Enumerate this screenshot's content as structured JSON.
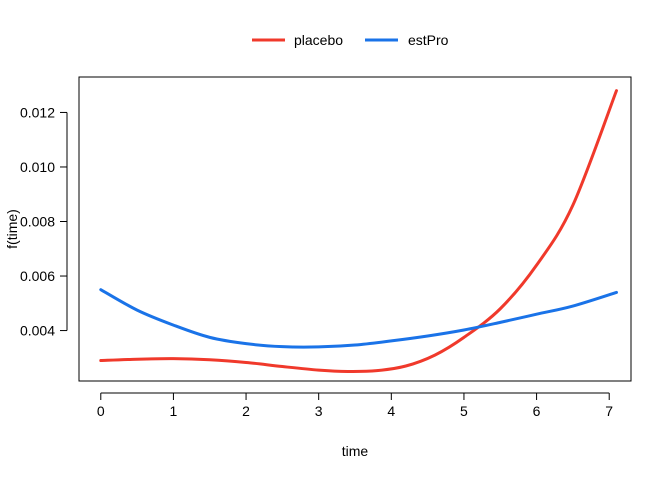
{
  "chart_data": {
    "type": "line",
    "title": "",
    "xlabel": "time",
    "ylabel": "f(time)",
    "xlim": [
      -0.3,
      7.3
    ],
    "ylim": [
      0.00215,
      0.0133
    ],
    "xticks": [
      0,
      1,
      2,
      3,
      4,
      5,
      6,
      7
    ],
    "xtick_labels": [
      "0",
      "1",
      "2",
      "3",
      "4",
      "5",
      "6",
      "7"
    ],
    "yticks": [
      0.004,
      0.006,
      0.008,
      0.01,
      0.012
    ],
    "ytick_labels": [
      "0.004",
      "0.006",
      "0.008",
      "0.010",
      "0.012"
    ],
    "grid": false,
    "legend_position": "top-center",
    "series": [
      {
        "name": "placebo",
        "color": "#F0392B",
        "x": [
          0,
          0.5,
          1,
          1.5,
          2,
          2.5,
          3,
          3.4,
          3.8,
          4.2,
          4.6,
          5,
          5.5,
          6,
          6.5,
          7.1
        ],
        "y": [
          0.0029,
          0.00295,
          0.00297,
          0.00293,
          0.00283,
          0.00268,
          0.00255,
          0.0025,
          0.00253,
          0.0027,
          0.0031,
          0.00375,
          0.0048,
          0.0064,
          0.0086,
          0.0128
        ]
      },
      {
        "name": "estPro",
        "color": "#1A73E8",
        "x": [
          0,
          0.5,
          1,
          1.5,
          2,
          2.5,
          3,
          3.5,
          4,
          4.5,
          5,
          5.5,
          6,
          6.5,
          7.1
        ],
        "y": [
          0.0055,
          0.00475,
          0.0042,
          0.00375,
          0.00352,
          0.00341,
          0.0034,
          0.00347,
          0.00362,
          0.0038,
          0.00402,
          0.0043,
          0.0046,
          0.0049,
          0.0054
        ]
      }
    ]
  }
}
